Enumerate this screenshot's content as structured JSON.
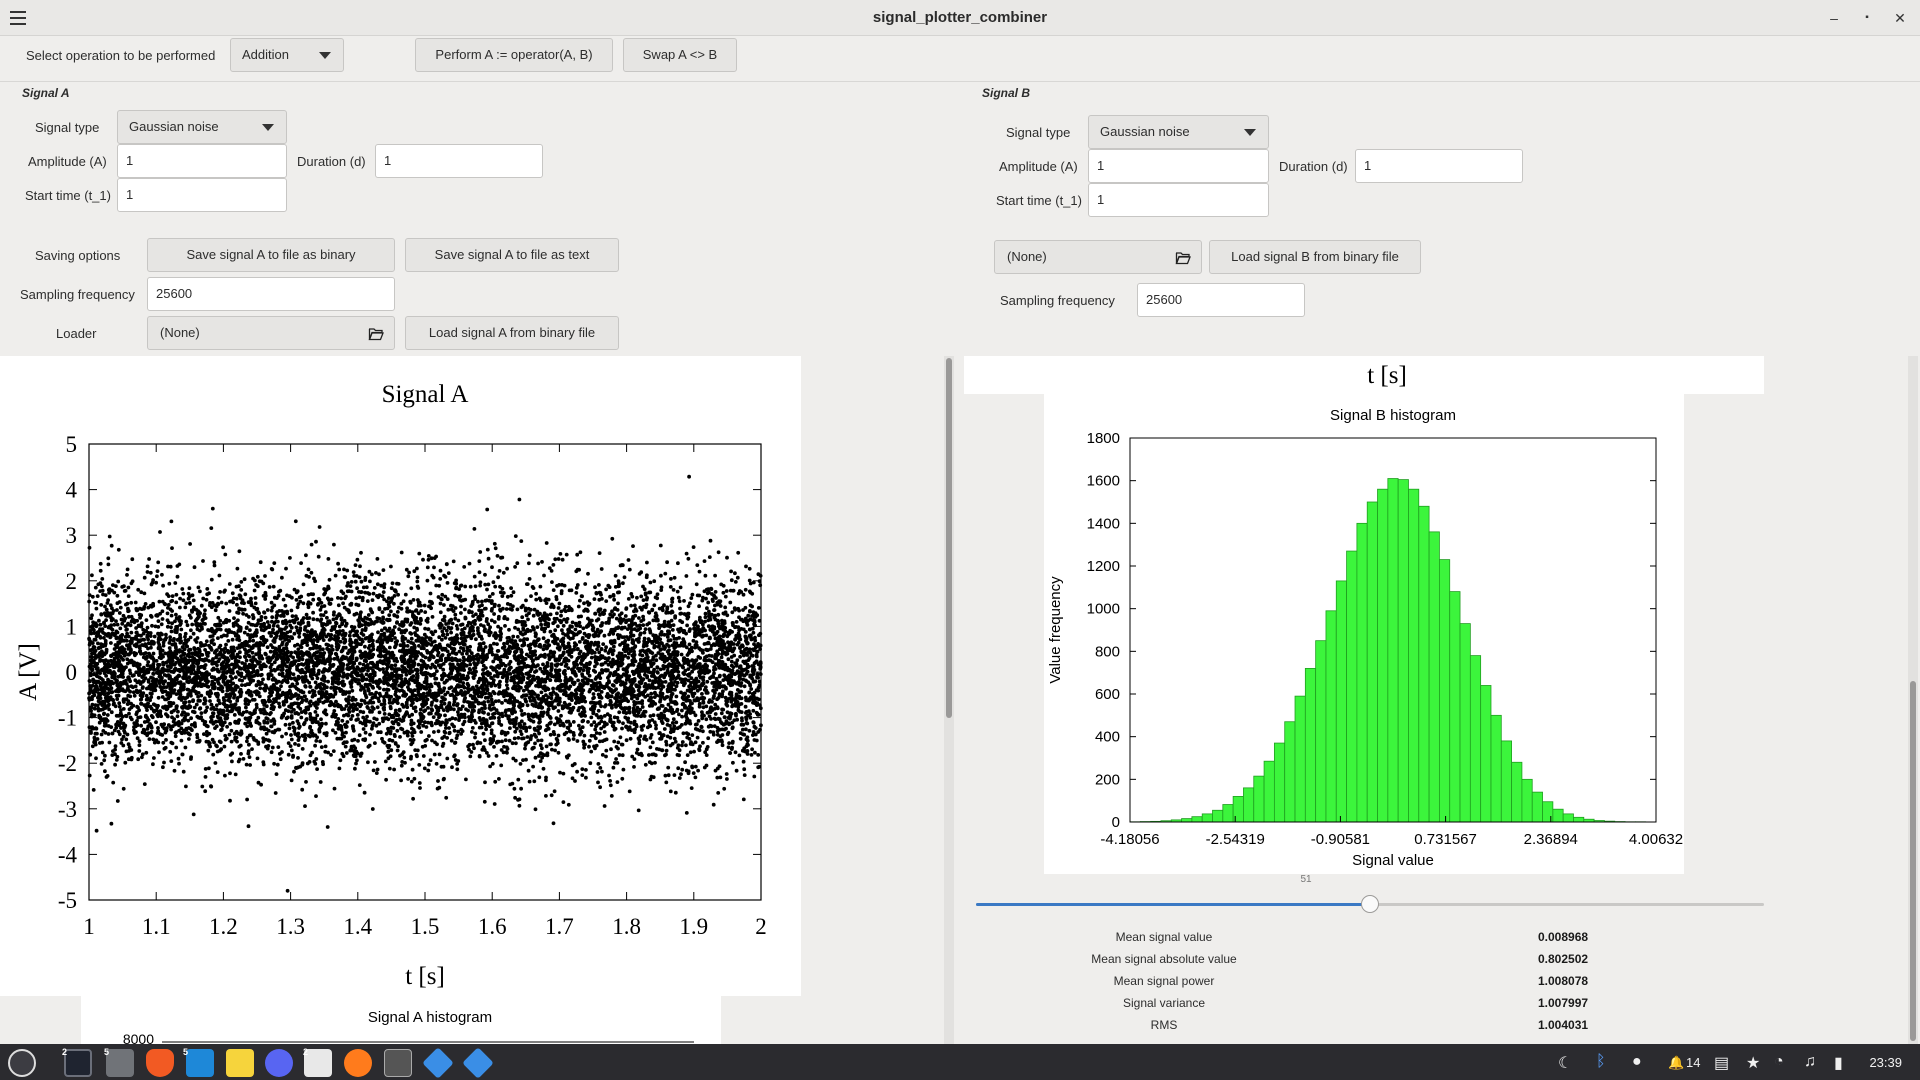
{
  "window": {
    "title": "signal_plotter_combiner",
    "minimize": "–",
    "maximize": "▪",
    "close": "✕"
  },
  "operation": {
    "label": "Select operation to be performed",
    "selected": "Addition",
    "perform_button": "Perform A := operator(A, B)",
    "swap_button": "Swap A <> B"
  },
  "signal_a": {
    "section_title": "Signal A",
    "type_label": "Signal type",
    "type_value": "Gaussian noise",
    "amplitude_label": "Amplitude (A)",
    "amplitude_value": "1",
    "duration_label": "Duration (d)",
    "duration_value": "1",
    "start_label": "Start time (t_1)",
    "start_value": "1",
    "saving_label": "Saving options",
    "save_binary": "Save signal A to file as binary",
    "save_text": "Save signal A to file as text",
    "sampling_label": "Sampling frequency",
    "sampling_value": "25600",
    "loader_label": "Loader",
    "loader_file": "(None)",
    "load_button": "Load signal  A from binary file"
  },
  "signal_b": {
    "section_title": "Signal B",
    "type_label": "Signal type",
    "type_value": "Gaussian noise",
    "amplitude_label": "Amplitude (A)",
    "amplitude_value": "1",
    "duration_label": "Duration (d)",
    "duration_value": "1",
    "start_label": "Start time (t_1)",
    "start_value": "1",
    "loader_file": "(None)",
    "load_button": "Load signal  B from binary file",
    "sampling_label": "Sampling frequency",
    "sampling_value": "25600"
  },
  "plot_a": {
    "title": "Signal A",
    "xlabel": "t [s]",
    "ylabel": "A [V]"
  },
  "plot_b_top": {
    "xlabel": "t [s]"
  },
  "hist_a": {
    "title": "Signal A histogram",
    "visible_tick": "8000"
  },
  "slider": {
    "value": "51",
    "fraction": 0.5
  },
  "stats": [
    {
      "label": "Mean signal value",
      "value": "0.008968"
    },
    {
      "label": "Mean signal absolute value",
      "value": "0.802502"
    },
    {
      "label": "Mean signal power",
      "value": "1.008078"
    },
    {
      "label": "Signal variance",
      "value": "1.007997"
    },
    {
      "label": "RMS",
      "value": "1.004031"
    }
  ],
  "taskbar": {
    "clock": "23:39",
    "notification_count": "14",
    "icons": [
      "menu-launcher-icon",
      "terminal-icon",
      "files-icon",
      "brave-icon",
      "vscode-icon",
      "notes-icon",
      "discord-icon",
      "document-viewer-icon",
      "firefox-icon",
      "tex-icon",
      "app-icon",
      "app-icon-2"
    ]
  },
  "chart_data": [
    {
      "type": "scatter",
      "title": "Signal A",
      "xlabel": "t [s]",
      "ylabel": "A [V]",
      "xlim": [
        1,
        2
      ],
      "ylim": [
        -5,
        5
      ],
      "x_ticks": [
        "1",
        "1.1",
        "1.2",
        "1.3",
        "1.4",
        "1.5",
        "1.6",
        "1.7",
        "1.8",
        "1.9",
        "2"
      ],
      "y_ticks": [
        "5",
        "4",
        "3",
        "2",
        "1",
        "0",
        "-1",
        "-2",
        "-3",
        "-4",
        "-5"
      ],
      "series": [
        {
          "distribution": "gaussian",
          "mean": 0,
          "std": 1,
          "samples": 25600
        }
      ]
    },
    {
      "type": "bar",
      "title": "Signal B histogram",
      "xlabel": "Signal value",
      "ylabel": "Value frequency",
      "ylim": [
        0,
        1800
      ],
      "xlim": [
        -4.18056,
        4.00632
      ],
      "bins": 51,
      "x_ticks": [
        "-4.18056",
        "-2.54319",
        "-0.90581",
        "0.731567",
        "2.36894",
        "4.00632"
      ],
      "y_ticks": [
        "0",
        "200",
        "400",
        "600",
        "800",
        "1000",
        "1200",
        "1400",
        "1600",
        "1800"
      ],
      "values": [
        1,
        2,
        3,
        6,
        10,
        16,
        25,
        38,
        55,
        82,
        120,
        160,
        215,
        285,
        370,
        470,
        590,
        720,
        850,
        990,
        1130,
        1270,
        1400,
        1500,
        1560,
        1610,
        1605,
        1560,
        1480,
        1360,
        1230,
        1080,
        930,
        780,
        640,
        500,
        380,
        280,
        200,
        140,
        95,
        60,
        38,
        22,
        13,
        7,
        4,
        2,
        1,
        1,
        0
      ],
      "bar_color": "#3cf53c"
    }
  ]
}
